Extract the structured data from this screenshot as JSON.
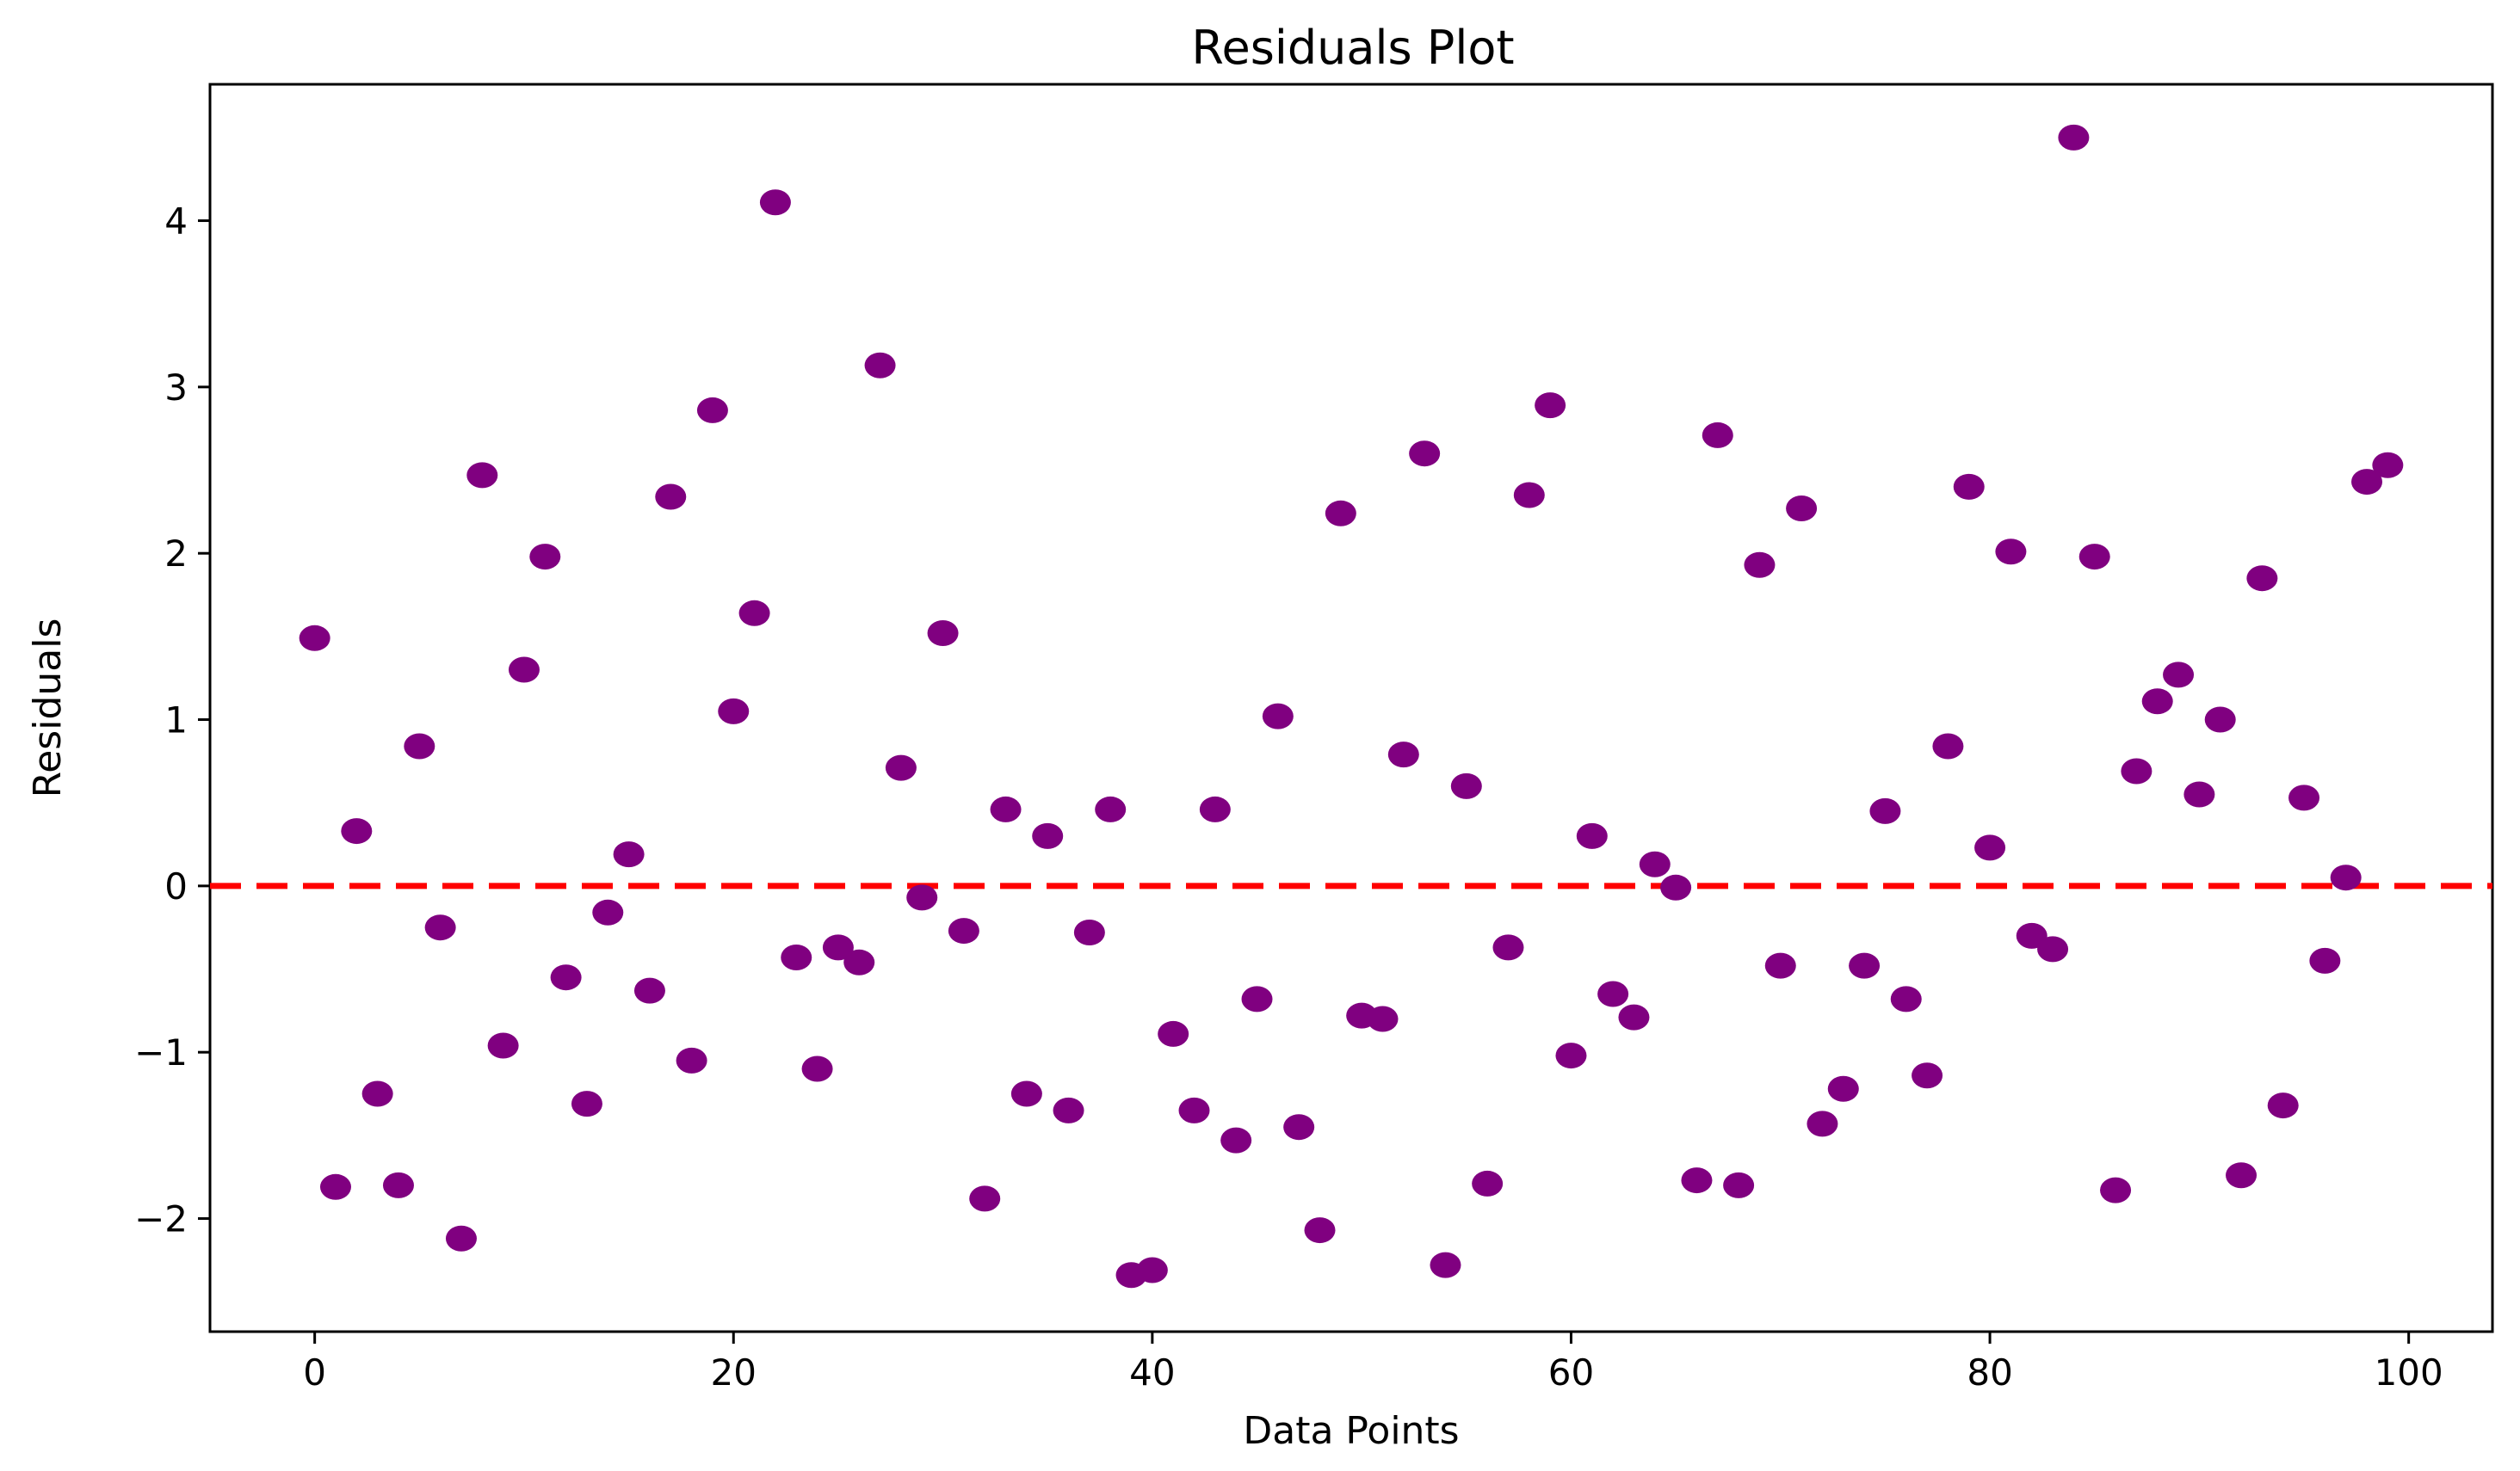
{
  "chart_data": {
    "type": "scatter",
    "title": "Residuals Plot",
    "xlabel": "Data Points",
    "ylabel": "Residuals",
    "xlim": [
      -5,
      104
    ],
    "ylim": [
      -2.68,
      4.82
    ],
    "xticks": [
      0,
      20,
      40,
      60,
      80,
      100
    ],
    "xtick_labels": [
      "0",
      "20",
      "40",
      "60",
      "80",
      "100"
    ],
    "yticks": [
      -2,
      -1,
      0,
      1,
      2,
      3,
      4
    ],
    "ytick_labels": [
      "−2",
      "−1",
      "0",
      "1",
      "2",
      "3",
      "4"
    ],
    "grid": false,
    "legend": "none",
    "colors": {
      "points": "#800080",
      "reference_line": "#ff0000",
      "axes": "#000000"
    },
    "reference_line": {
      "y": 0,
      "style": "dashed"
    },
    "series": [
      {
        "x": [
          0,
          1,
          2,
          3,
          4,
          5,
          6,
          7,
          8,
          9,
          10,
          11,
          12,
          13,
          14,
          15,
          16,
          17,
          18,
          19,
          20,
          21,
          22,
          23,
          24,
          25,
          26,
          27,
          28,
          29,
          30,
          31,
          32,
          33,
          34,
          35,
          36,
          37,
          38,
          39,
          40,
          41,
          42,
          43,
          44,
          45,
          46,
          47,
          48,
          49,
          50,
          51,
          52,
          53,
          54,
          55,
          56,
          57,
          58,
          59,
          60,
          61,
          62,
          63,
          64,
          65,
          66,
          67,
          68,
          69,
          70,
          71,
          72,
          73,
          74,
          75,
          76,
          77,
          78,
          79,
          80,
          81,
          82,
          83,
          84,
          85,
          86,
          87,
          88,
          89,
          90,
          91,
          92,
          93,
          94,
          95,
          96,
          97,
          98,
          99
        ],
        "values": [
          1.49,
          -1.81,
          0.33,
          -1.25,
          -1.8,
          0.84,
          -0.25,
          -2.12,
          2.47,
          -0.96,
          1.3,
          1.98,
          -0.55,
          -1.31,
          -0.16,
          0.19,
          -0.63,
          2.34,
          -1.05,
          2.86,
          1.05,
          1.64,
          4.11,
          -0.43,
          -1.1,
          -0.37,
          -0.46,
          3.13,
          0.71,
          -0.07,
          1.52,
          -0.27,
          -1.88,
          0.46,
          -1.25,
          0.3,
          -1.35,
          -0.28,
          0.46,
          -2.34,
          -2.31,
          -0.89,
          -1.35,
          0.46,
          -1.53,
          -0.68,
          1.02,
          -1.45,
          -2.07,
          2.24,
          -0.78,
          -0.8,
          0.79,
          2.6,
          -2.28,
          0.6,
          -1.79,
          -0.37,
          2.35,
          2.89,
          -1.02,
          0.3,
          -0.65,
          -0.79,
          0.13,
          -0.01,
          -1.77,
          2.71,
          -1.8,
          1.93,
          -0.48,
          2.27,
          -1.43,
          -1.22,
          -0.48,
          0.45,
          -0.68,
          -1.14,
          0.84,
          2.4,
          0.23,
          2.01,
          -0.3,
          -0.38,
          4.5,
          1.98,
          -1.83,
          0.69,
          1.11,
          1.27,
          0.55,
          1.0,
          -1.74,
          1.85,
          -1.32,
          0.53,
          -0.45,
          0.05,
          2.43,
          2.53
        ]
      }
    ]
  }
}
